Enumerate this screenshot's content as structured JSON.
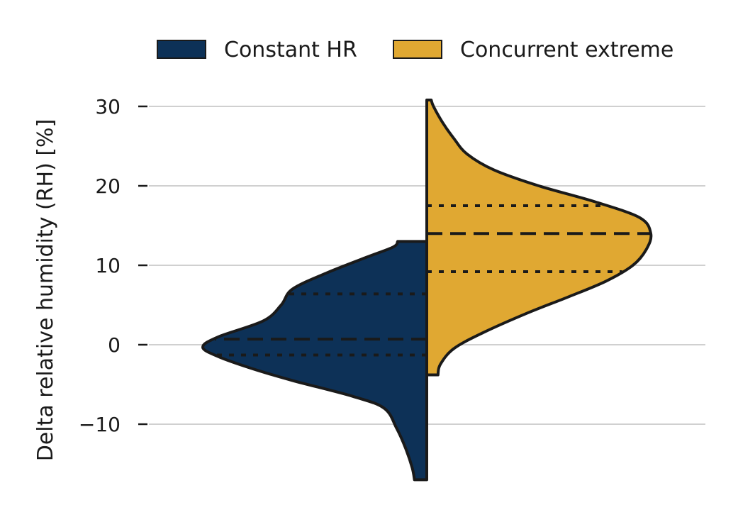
{
  "chart_data": {
    "type": "violin",
    "title": "",
    "ylabel": "Delta relative humidity (RH) [%]",
    "xlabel": "",
    "ylim": [
      -17,
      32
    ],
    "yticks": [
      30,
      20,
      10,
      0,
      -10
    ],
    "ytick_labels": [
      "30",
      "20",
      "10",
      "0",
      "−10"
    ],
    "grid": "horizontal",
    "legend_position": "top",
    "series": [
      {
        "name": "Constant HR",
        "color": "#0d3157",
        "side": "left",
        "median": 0.7,
        "quartiles": [
          -1.3,
          6.4
        ],
        "density": [
          {
            "y": -17.0,
            "w": 0.055
          },
          {
            "y": -15.5,
            "w": 0.065
          },
          {
            "y": -13.0,
            "w": 0.095
          },
          {
            "y": -10.5,
            "w": 0.135
          },
          {
            "y": -8.0,
            "w": 0.19
          },
          {
            "y": -6.5,
            "w": 0.33
          },
          {
            "y": -4.5,
            "w": 0.6
          },
          {
            "y": -3.0,
            "w": 0.78
          },
          {
            "y": -1.5,
            "w": 0.93
          },
          {
            "y": -0.3,
            "w": 1.0
          },
          {
            "y": 1.0,
            "w": 0.93
          },
          {
            "y": 3.0,
            "w": 0.73
          },
          {
            "y": 5.0,
            "w": 0.65
          },
          {
            "y": 7.0,
            "w": 0.6
          },
          {
            "y": 9.0,
            "w": 0.45
          },
          {
            "y": 11.0,
            "w": 0.27
          },
          {
            "y": 12.3,
            "w": 0.15
          },
          {
            "y": 13.0,
            "w": 0.13
          }
        ]
      },
      {
        "name": "Concurrent extreme",
        "color": "#e0a832",
        "side": "right",
        "median": 14.0,
        "quartiles": [
          9.2,
          17.5
        ],
        "density": [
          {
            "y": -3.8,
            "w": 0.05
          },
          {
            "y": -2.5,
            "w": 0.06
          },
          {
            "y": -0.5,
            "w": 0.12
          },
          {
            "y": 1.5,
            "w": 0.25
          },
          {
            "y": 4.0,
            "w": 0.45
          },
          {
            "y": 6.0,
            "w": 0.63
          },
          {
            "y": 8.0,
            "w": 0.8
          },
          {
            "y": 10.0,
            "w": 0.92
          },
          {
            "y": 12.0,
            "w": 0.98
          },
          {
            "y": 14.0,
            "w": 1.0
          },
          {
            "y": 16.0,
            "w": 0.95
          },
          {
            "y": 18.0,
            "w": 0.75
          },
          {
            "y": 20.0,
            "w": 0.5
          },
          {
            "y": 22.0,
            "w": 0.3
          },
          {
            "y": 24.0,
            "w": 0.18
          },
          {
            "y": 26.0,
            "w": 0.12
          },
          {
            "y": 28.0,
            "w": 0.07
          },
          {
            "y": 30.0,
            "w": 0.03
          },
          {
            "y": 30.8,
            "w": 0.02
          }
        ]
      }
    ]
  }
}
